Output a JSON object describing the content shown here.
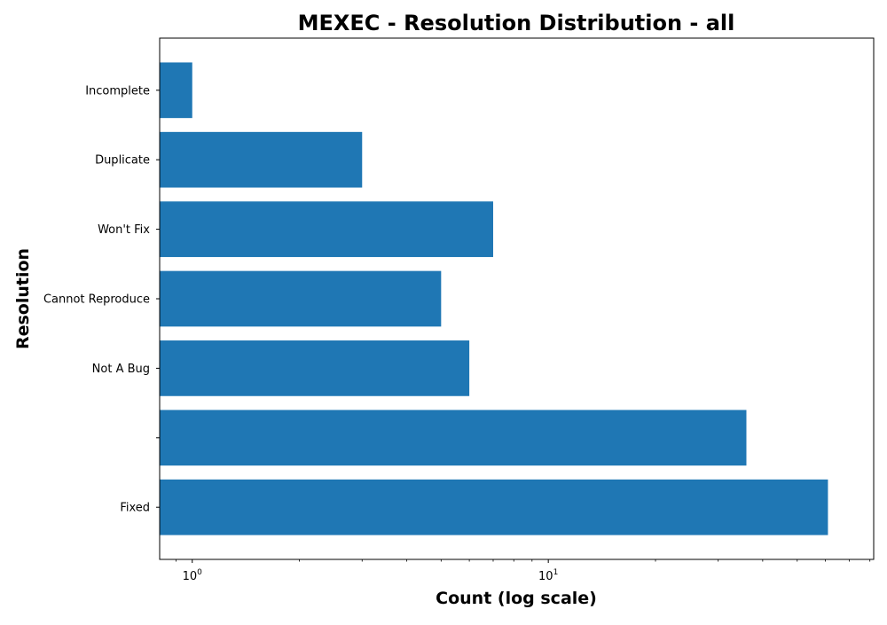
{
  "chart_data": {
    "type": "bar",
    "orientation": "horizontal",
    "title": "MEXEC - Resolution Distribution - all",
    "xlabel": "Count (log scale)",
    "ylabel": "Resolution",
    "x_scale": "log",
    "xlim": [
      0.81,
      82
    ],
    "x_ticks": [
      {
        "value": 1,
        "base": "10",
        "exponent": "0"
      },
      {
        "value": 10,
        "base": "10",
        "exponent": "1"
      }
    ],
    "categories": [
      "Incomplete",
      "Duplicate",
      "Won't Fix",
      "Cannot Reproduce",
      "Not A Bug",
      "",
      "Fixed"
    ],
    "values": [
      1,
      3,
      7,
      5,
      6,
      36,
      61
    ],
    "bar_color": "#1f77b4",
    "grid": false,
    "legend": "none"
  }
}
